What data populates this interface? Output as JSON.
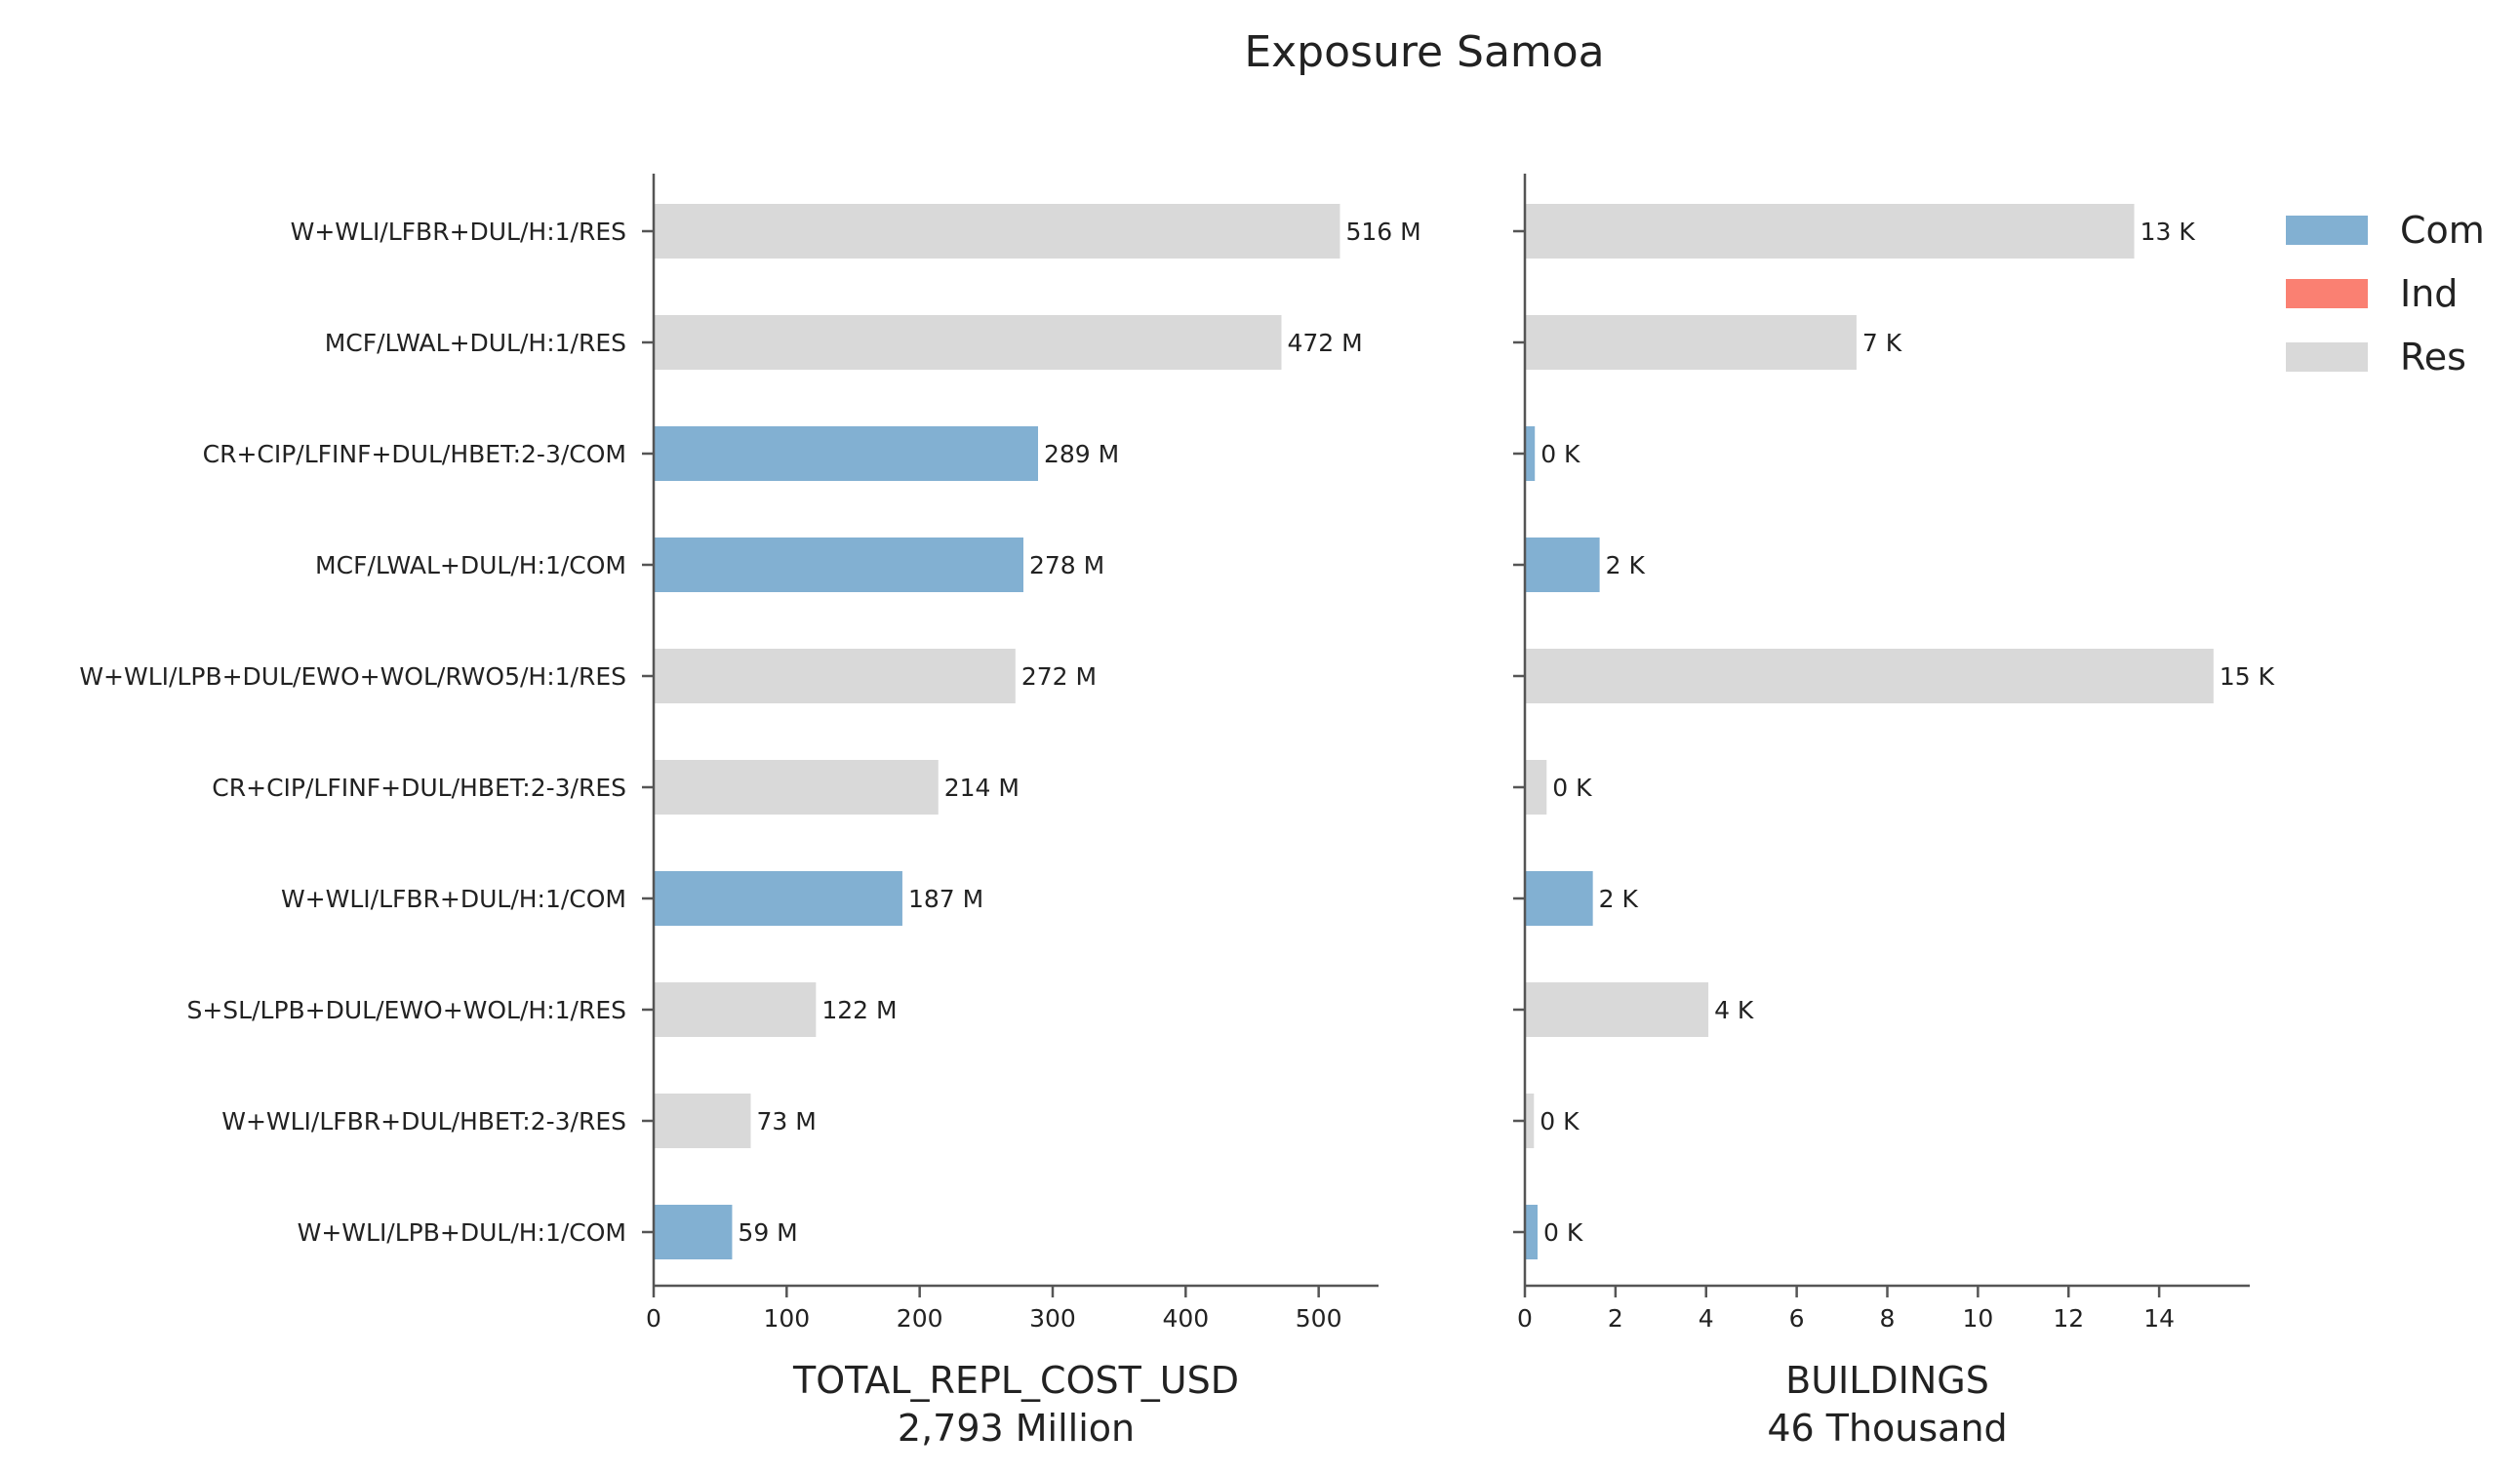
{
  "chart_data": {
    "type": "bar",
    "orientation": "horizontal",
    "title": "Exposure Samoa",
    "categories": [
      "W+WLI/LFBR+DUL/H:1/RES",
      "MCF/LWAL+DUL/H:1/RES",
      "CR+CIP/LFINF+DUL/HBET:2-3/COM",
      "MCF/LWAL+DUL/H:1/COM",
      "W+WLI/LPB+DUL/EWO+WOL/RWO5/H:1/RES",
      "CR+CIP/LFINF+DUL/HBET:2-3/RES",
      "W+WLI/LFBR+DUL/H:1/COM",
      "S+SL/LPB+DUL/EWO+WOL/H:1/RES",
      "W+WLI/LFBR+DUL/HBET:2-3/RES",
      "W+WLI/LPB+DUL/H:1/COM"
    ],
    "occupancy": [
      "Res",
      "Res",
      "Com",
      "Com",
      "Res",
      "Res",
      "Com",
      "Res",
      "Res",
      "Com"
    ],
    "legend": {
      "placement": "top-right",
      "entries": [
        {
          "name": "Com",
          "color": "#82b0d2"
        },
        {
          "name": "Ind",
          "color": "#fa8072"
        },
        {
          "name": "Res",
          "color": "#d9d9d9"
        }
      ]
    },
    "panels": [
      {
        "name": "cost",
        "xlabel": "TOTAL_REPL_COST_USD",
        "xlabel_sub": "2,793 Million",
        "values": [
          516,
          472,
          289,
          278,
          272,
          214,
          187,
          122,
          73,
          59
        ],
        "value_labels": [
          "516 M",
          "472 M",
          "289 M",
          "278 M",
          "272 M",
          "214 M",
          "187 M",
          "122 M",
          "73 M",
          "59 M"
        ],
        "xlim": [
          0,
          545
        ],
        "xticks": [
          0,
          100,
          200,
          300,
          400,
          500
        ],
        "xtick_labels": [
          "0",
          "100",
          "200",
          "300",
          "400",
          "500"
        ]
      },
      {
        "name": "buildings",
        "xlabel": "BUILDINGS",
        "xlabel_sub": "46 Thousand",
        "values": [
          13.45,
          7.32,
          0.22,
          1.65,
          15.2,
          0.48,
          1.5,
          4.05,
          0.2,
          0.28
        ],
        "value_labels": [
          "13 K",
          "7 K",
          "0 K",
          "2 K",
          "15 K",
          "0 K",
          "2 K",
          "4 K",
          "0 K",
          "0 K"
        ],
        "xlim": [
          0,
          16
        ],
        "xticks": [
          0,
          2,
          4,
          6,
          8,
          10,
          12,
          14
        ],
        "xtick_labels": [
          "0",
          "2",
          "4",
          "6",
          "8",
          "10",
          "12",
          "14"
        ]
      }
    ]
  }
}
